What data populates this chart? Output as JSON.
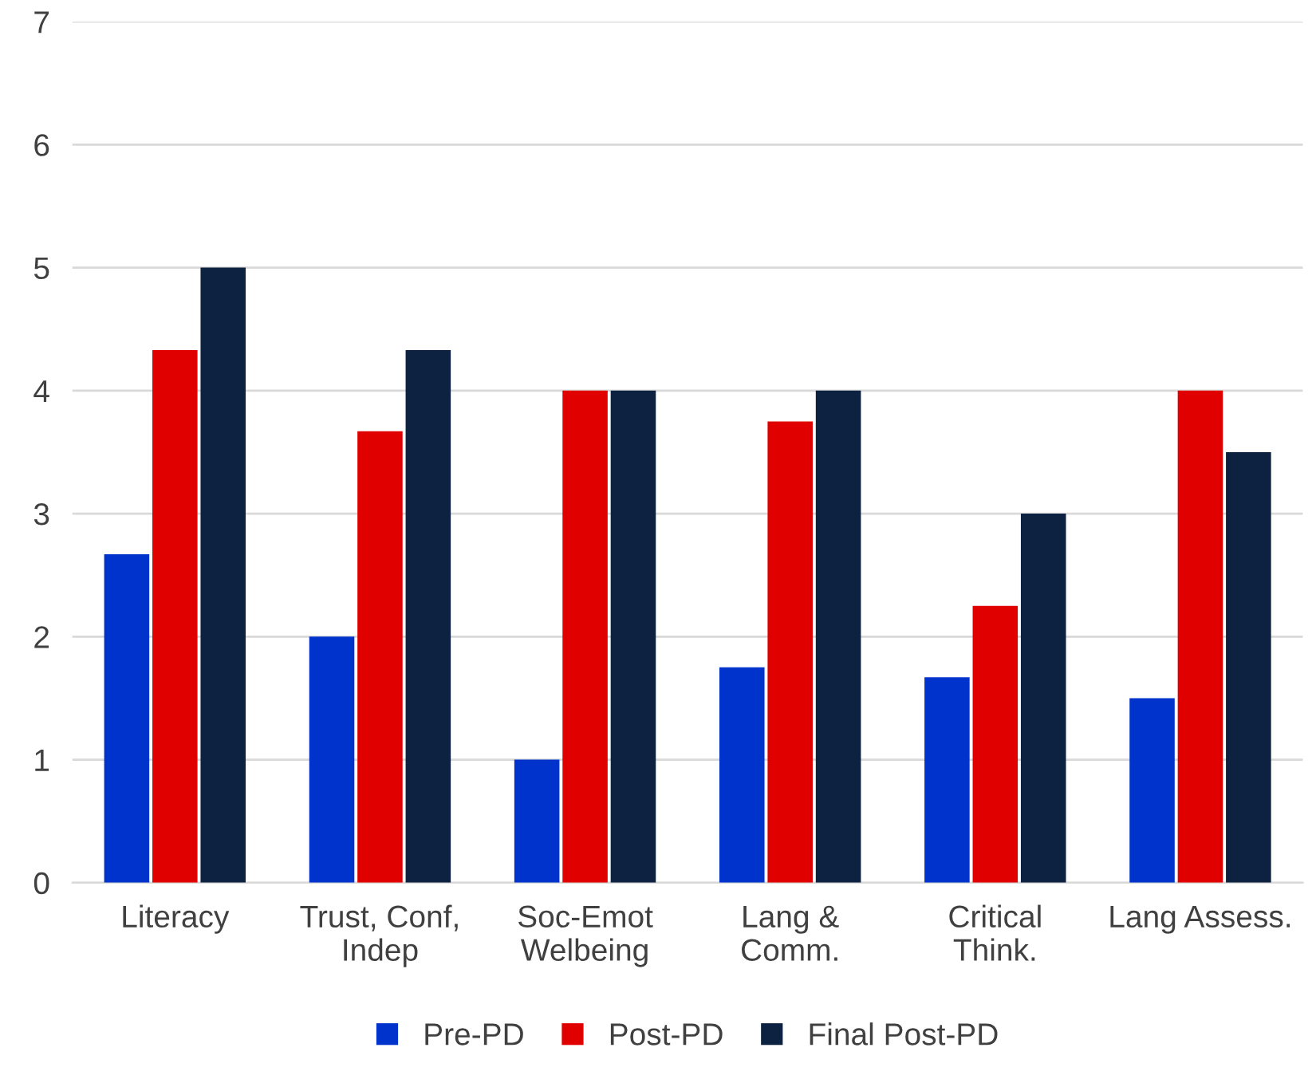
{
  "chart_data": {
    "type": "bar",
    "categories": [
      "Literacy",
      "Trust, Conf,\nIndep",
      "Soc-Emot\nWelbeing",
      "Lang &\nComm.",
      "Critical\nThink.",
      "Lang Assess."
    ],
    "series": [
      {
        "name": "Pre-PD",
        "color": "#0033cc",
        "values": [
          2.67,
          2,
          1,
          1.75,
          1.67,
          1.5
        ]
      },
      {
        "name": "Post-PD",
        "color": "#e00000",
        "values": [
          4.33,
          3.67,
          4,
          3.75,
          2.25,
          4
        ]
      },
      {
        "name": "Final Post-PD",
        "color": "#0d2240",
        "values": [
          5,
          4.33,
          4,
          4,
          3,
          3.5
        ]
      }
    ],
    "ylim": [
      0,
      7
    ],
    "yticks": [
      0,
      1,
      2,
      3,
      4,
      5,
      6,
      7
    ],
    "grid": "y",
    "legend": "bottom"
  }
}
